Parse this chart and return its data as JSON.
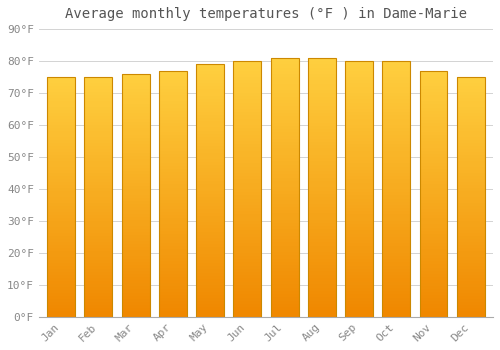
{
  "title": "Average monthly temperatures (°F ) in Dame-Marie",
  "months": [
    "Jan",
    "Feb",
    "Mar",
    "Apr",
    "May",
    "Jun",
    "Jul",
    "Aug",
    "Sep",
    "Oct",
    "Nov",
    "Dec"
  ],
  "values": [
    75,
    75,
    76,
    77,
    79,
    80,
    81,
    81,
    80,
    80,
    77,
    75
  ],
  "bar_color_bright": "#FFD040",
  "bar_color_dark": "#F08000",
  "bar_edge_color": "#CC8800",
  "background_color": "#FFFFFF",
  "grid_color": "#CCCCCC",
  "text_color": "#888888",
  "title_color": "#555555",
  "ylim": [
    0,
    90
  ],
  "yticks": [
    0,
    10,
    20,
    30,
    40,
    50,
    60,
    70,
    80,
    90
  ],
  "ytick_labels": [
    "0°F",
    "10°F",
    "20°F",
    "30°F",
    "40°F",
    "50°F",
    "60°F",
    "70°F",
    "80°F",
    "90°F"
  ],
  "title_fontsize": 10,
  "tick_fontsize": 8,
  "bar_width": 0.75
}
